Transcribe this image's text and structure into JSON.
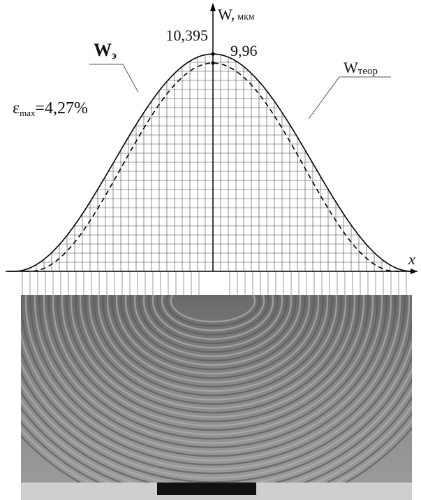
{
  "chart_data": {
    "type": "line",
    "y_label": {
      "main": "W,",
      "sub": "мкм"
    },
    "x_label": "x",
    "series": [
      {
        "name": {
          "main": "W",
          "sub": "э"
        },
        "color": "#000000",
        "dashed": false,
        "values": [
          10.395
        ],
        "value_labels": [
          "10,395"
        ]
      },
      {
        "name": {
          "main": "W",
          "sub": "теор"
        },
        "color": "#000000",
        "dashed": true,
        "values": [
          9.96
        ],
        "value_labels": [
          "9,96"
        ]
      }
    ],
    "annotation": {
      "main": "ε",
      "sub": "max",
      "rest": "=4,27%"
    }
  }
}
